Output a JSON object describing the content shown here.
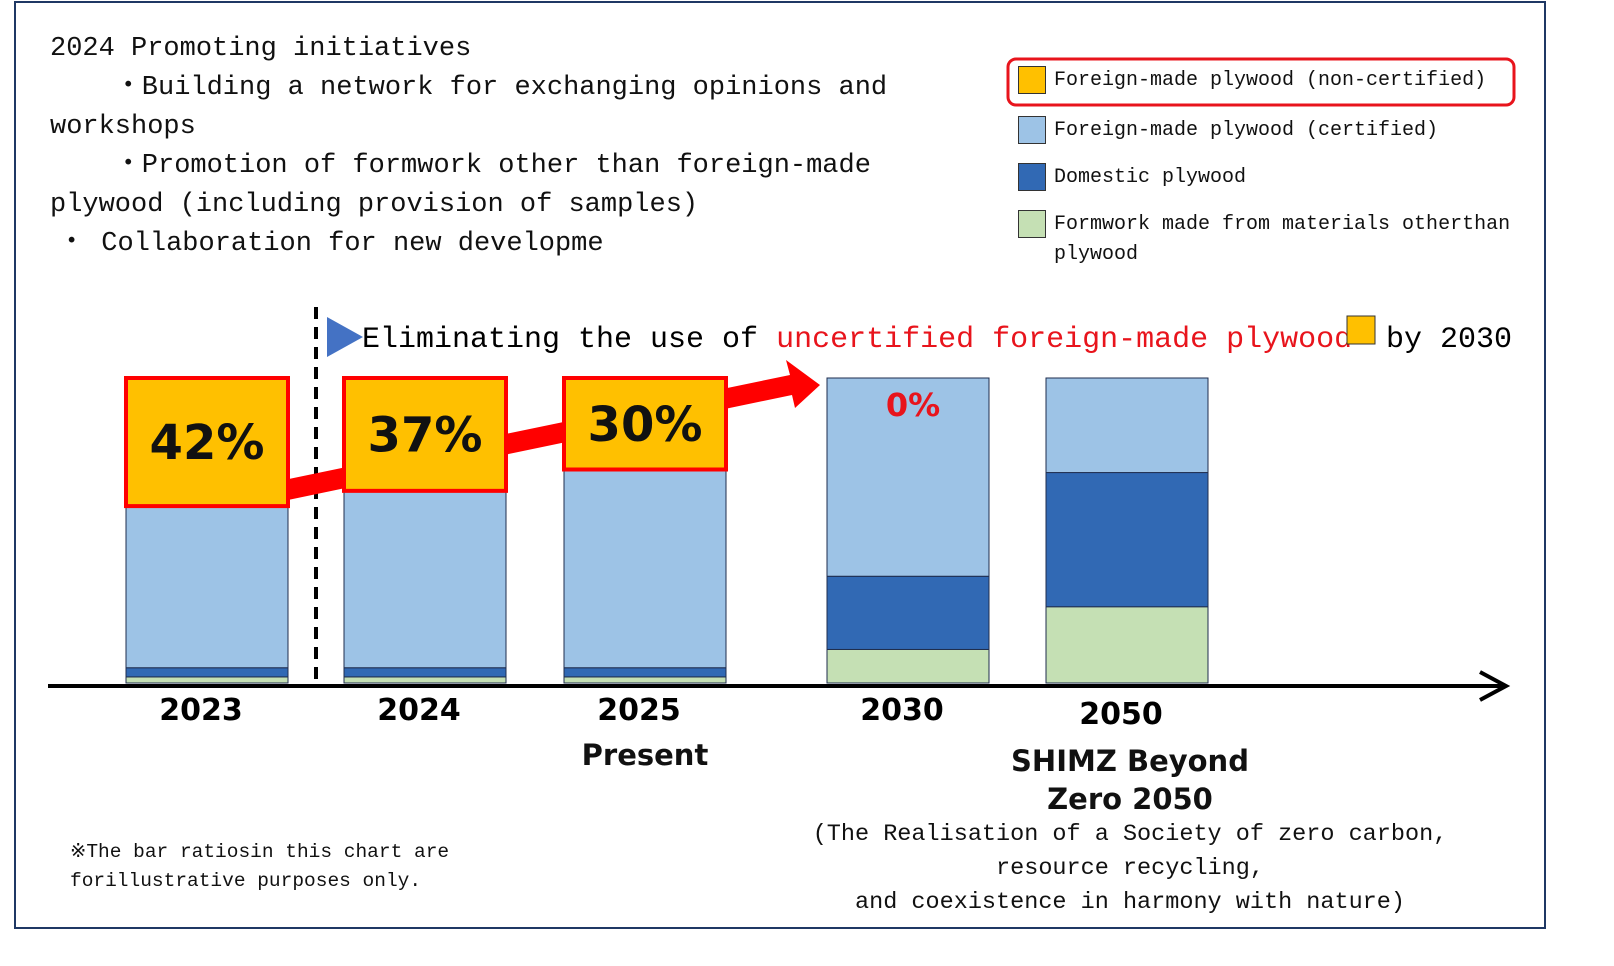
{
  "chart_data": {
    "type": "stacked_bar",
    "notes": [
      "2024 Promoting initiatives",
      "・Building a network for exchanging opinions and workshops",
      "・Promotion of formwork other than foreign-made plywood (including provision of samples)",
      "・ Collaboration for new developme"
    ],
    "headline": {
      "prefix": "Eliminating the use of ",
      "highlight": "uncertified foreign-made plywood",
      "suffix": "by 2030"
    },
    "categories": [
      "2023",
      "2024",
      "2025",
      "2030",
      "2050"
    ],
    "category_notes": {
      "present": "Present",
      "goal": "SHIMZ Beyond Zero 2050",
      "goal_detail": [
        "(The Realisation of a Society of zero carbon,",
        "resource recycling,",
        "and coexistence in harmony with nature)"
      ]
    },
    "footnote": "※The bar ratiosin this chart are forillustrative purposes only.",
    "ylim": [
      0,
      100
    ],
    "series": [
      {
        "name": "Foreign-made plywood (non-certified)",
        "color": "#FFC000",
        "values": [
          42,
          37,
          30,
          0,
          0
        ],
        "value_labels": [
          "42%",
          "37%",
          "30%",
          "0%",
          null
        ]
      },
      {
        "name": "Foreign-made plywood (certified)",
        "color": "#9DC3E6",
        "values": [
          53,
          58,
          65,
          65,
          31
        ]
      },
      {
        "name": "Domestic plywood",
        "color": "#3169B4",
        "values": [
          3,
          3,
          3,
          24,
          44
        ]
      },
      {
        "name": "Formwork made from materials otherthan plywood",
        "color": "#C5E0B4",
        "values": [
          2,
          2,
          2,
          11,
          25
        ]
      }
    ]
  }
}
